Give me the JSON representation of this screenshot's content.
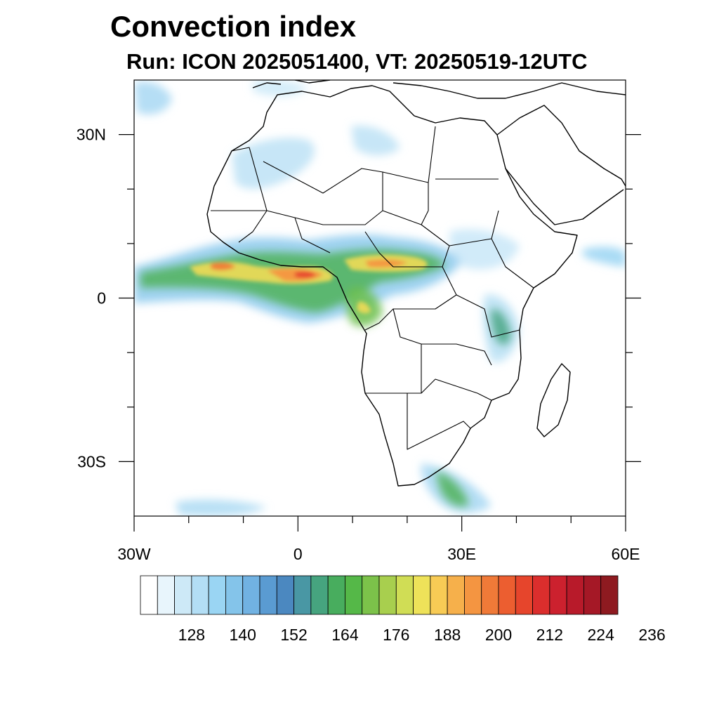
{
  "title": "Convection index",
  "subtitle": "Run: ICON 2025051400,  VT: 20250519-12UTC",
  "map": {
    "region": "Africa",
    "lon_range": [
      -30,
      60
    ],
    "lat_range": [
      -40,
      40
    ],
    "lon_ticks": [
      {
        "value": -30,
        "label": "30W"
      },
      {
        "value": 0,
        "label": "0"
      },
      {
        "value": 30,
        "label": "30E"
      },
      {
        "value": 60,
        "label": "60E"
      }
    ],
    "lat_ticks": [
      {
        "value": 30,
        "label": "30N"
      },
      {
        "value": 0,
        "label": "0"
      },
      {
        "value": -30,
        "label": "30S"
      }
    ]
  },
  "colorbar": {
    "labels": [
      "128",
      "140",
      "152",
      "164",
      "176",
      "188",
      "200",
      "212",
      "224",
      "236"
    ],
    "colors": [
      "#ffffff",
      "#e8f5fc",
      "#cde9f7",
      "#b3def5",
      "#9ad5f3",
      "#84c4ea",
      "#71b2e2",
      "#5a9bd2",
      "#4b88c0",
      "#4997a4",
      "#46a47f",
      "#48ad5e",
      "#55b848",
      "#7cc24a",
      "#a8cf4e",
      "#d0dd55",
      "#eee259",
      "#f8cb55",
      "#f6b04b",
      "#f49541",
      "#f07a38",
      "#ec5e30",
      "#e6452c",
      "#db2e2d",
      "#cc212e",
      "#b81a2a",
      "#a51826",
      "#8e1a20"
    ]
  },
  "colors": {
    "coast": "#000000",
    "background": "#ffffff"
  }
}
